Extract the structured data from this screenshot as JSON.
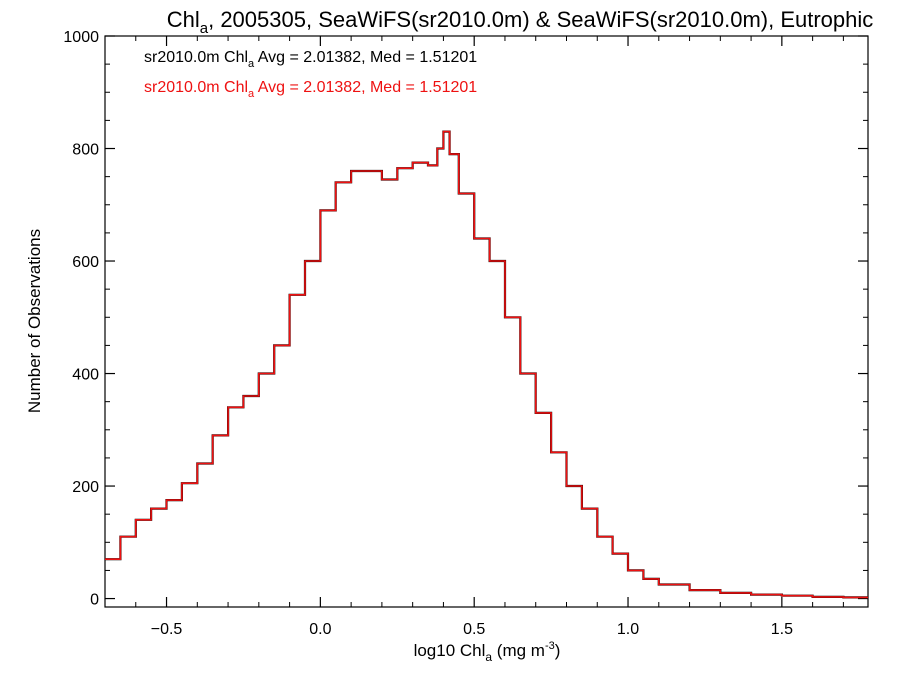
{
  "chart_data": {
    "type": "line",
    "title": {
      "pre": "Chl",
      "sub": "a",
      "post": ", 2005305, SeaWiFS(sr2010.0m) & SeaWiFS(sr2010.0m), Eutrophic"
    },
    "xlabel": {
      "pre": "log10 Chl",
      "sub": "a",
      "mid": " (mg m",
      "sup": "-3",
      "post": ")"
    },
    "ylabel": "Number of Observations",
    "xlim": [
      -0.7,
      1.78
    ],
    "ylim": [
      -15,
      1000
    ],
    "x_ticks": [
      -0.5,
      0.0,
      0.5,
      1.0,
      1.5
    ],
    "x_tick_labels": [
      "−0.5",
      "0.0",
      "0.5",
      "1.0",
      "1.5"
    ],
    "y_ticks": [
      0,
      200,
      400,
      600,
      800,
      1000
    ],
    "y_tick_labels": [
      "0",
      "200",
      "400",
      "600",
      "800",
      "1000"
    ],
    "legend_placement": "top-left",
    "grid": false,
    "series": [
      {
        "color": "#000000",
        "legend": {
          "pre": "sr2010.0m Chl",
          "sub": "a",
          "post": " Avg = 2.01382, Med = 1.51201"
        },
        "x": [
          -0.7,
          -0.65,
          -0.6,
          -0.55,
          -0.5,
          -0.45,
          -0.4,
          -0.35,
          -0.3,
          -0.25,
          -0.2,
          -0.15,
          -0.1,
          -0.05,
          0.0,
          0.05,
          0.1,
          0.15,
          0.2,
          0.25,
          0.3,
          0.35,
          0.38,
          0.4,
          0.42,
          0.45,
          0.5,
          0.55,
          0.6,
          0.65,
          0.7,
          0.75,
          0.8,
          0.85,
          0.9,
          0.95,
          1.0,
          1.05,
          1.1,
          1.2,
          1.3,
          1.4,
          1.5,
          1.6,
          1.7,
          1.78
        ],
        "y": [
          70,
          110,
          140,
          160,
          175,
          205,
          240,
          290,
          340,
          360,
          400,
          450,
          540,
          600,
          690,
          740,
          760,
          760,
          745,
          765,
          775,
          770,
          800,
          830,
          790,
          720,
          640,
          600,
          500,
          400,
          330,
          260,
          200,
          160,
          110,
          80,
          50,
          35,
          25,
          15,
          10,
          7,
          5,
          3,
          2,
          2
        ]
      },
      {
        "color": "#ee1111",
        "legend": {
          "pre": "sr2010.0m Chl",
          "sub": "a",
          "post": " Avg = 2.01382, Med = 1.51201"
        },
        "x": [
          -0.7,
          -0.65,
          -0.6,
          -0.55,
          -0.5,
          -0.45,
          -0.4,
          -0.35,
          -0.3,
          -0.25,
          -0.2,
          -0.15,
          -0.1,
          -0.05,
          0.0,
          0.05,
          0.1,
          0.15,
          0.2,
          0.25,
          0.3,
          0.35,
          0.38,
          0.4,
          0.42,
          0.45,
          0.5,
          0.55,
          0.6,
          0.65,
          0.7,
          0.75,
          0.8,
          0.85,
          0.9,
          0.95,
          1.0,
          1.05,
          1.1,
          1.2,
          1.3,
          1.4,
          1.5,
          1.6,
          1.7,
          1.78
        ],
        "y": [
          70,
          110,
          140,
          160,
          175,
          205,
          240,
          290,
          340,
          360,
          400,
          450,
          540,
          600,
          690,
          740,
          760,
          760,
          745,
          765,
          775,
          770,
          800,
          830,
          790,
          720,
          640,
          600,
          500,
          400,
          330,
          260,
          200,
          160,
          110,
          80,
          50,
          35,
          25,
          15,
          10,
          7,
          5,
          3,
          2,
          2
        ]
      }
    ]
  }
}
